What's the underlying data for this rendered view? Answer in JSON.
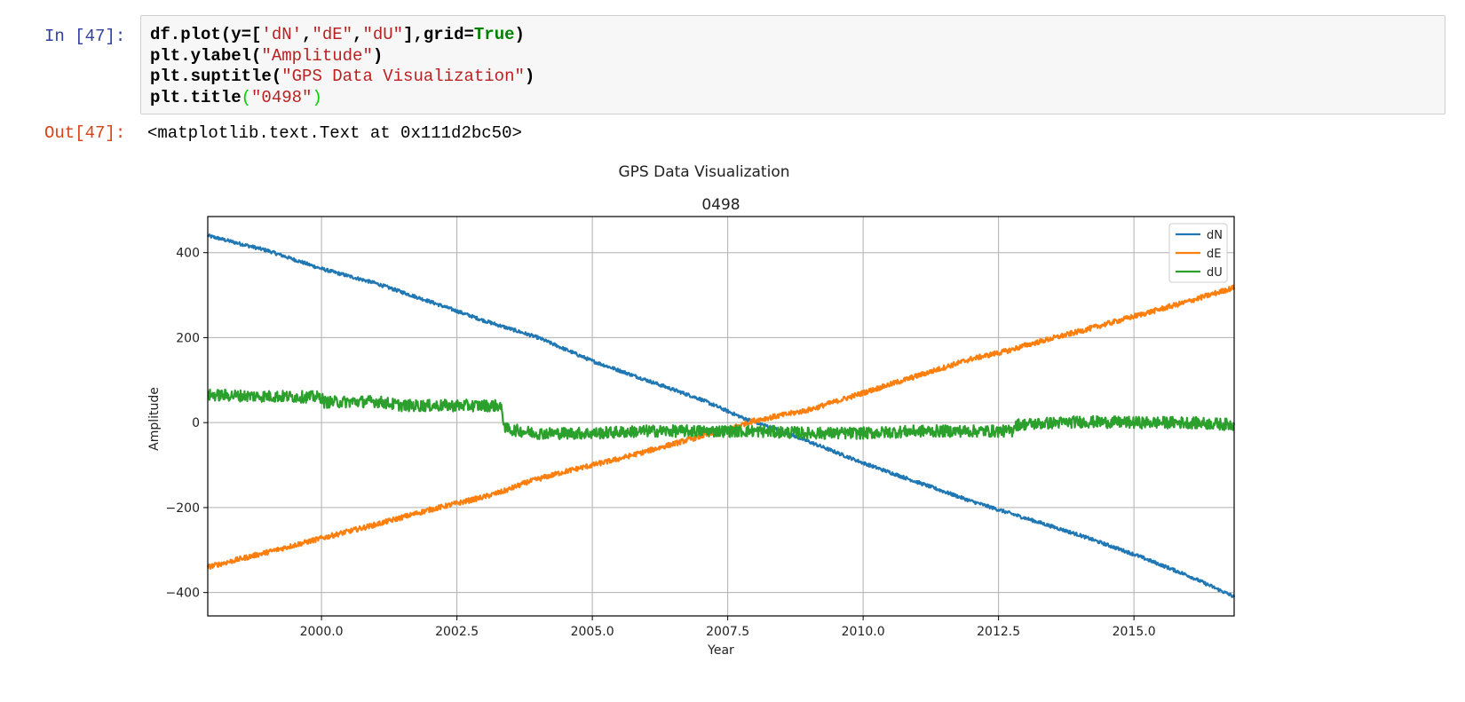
{
  "cell": {
    "in_prompt": "In [47]:",
    "out_prompt": "Out[47]:",
    "code_lines": [
      [
        {
          "t": "df.plot(y=[",
          "c": "n"
        },
        {
          "t": "'dN'",
          "c": "s"
        },
        {
          "t": ",",
          "c": "n"
        },
        {
          "t": "\"dE\"",
          "c": "s"
        },
        {
          "t": ",",
          "c": "n"
        },
        {
          "t": "\"dU\"",
          "c": "s"
        },
        {
          "t": "],grid=",
          "c": "n"
        },
        {
          "t": "True",
          "c": "k"
        },
        {
          "t": ")",
          "c": "n"
        }
      ],
      [
        {
          "t": "plt.ylabel(",
          "c": "n"
        },
        {
          "t": "\"Amplitude\"",
          "c": "s"
        },
        {
          "t": ")",
          "c": "n"
        }
      ],
      [
        {
          "t": "plt.suptitle(",
          "c": "n"
        },
        {
          "t": "\"GPS Data Visualization\"",
          "c": "s"
        },
        {
          "t": ")",
          "c": "n"
        }
      ],
      [
        {
          "t": "plt.title",
          "c": "n"
        },
        {
          "t": "(",
          "c": "p"
        },
        {
          "t": "\"0498\"",
          "c": "s"
        },
        {
          "t": ")",
          "c": "p"
        }
      ]
    ],
    "output_text": "<matplotlib.text.Text at 0x111d2bc50>"
  },
  "colors": {
    "dN": "#1f77b4",
    "dE": "#ff7f0e",
    "dU": "#2ca02c",
    "grid": "#b0b0b0"
  },
  "chart_data": {
    "type": "line",
    "suptitle": "GPS Data Visualization",
    "title": "0498",
    "xlabel": "Year",
    "ylabel": "Amplitude",
    "xlim": [
      1997.9,
      2016.85
    ],
    "ylim": [
      -455,
      485
    ],
    "grid": true,
    "legend_position": "top-right",
    "x_ticks": [
      2000.0,
      2002.5,
      2005.0,
      2007.5,
      2010.0,
      2012.5,
      2015.0
    ],
    "x_tick_labels": [
      "2000.0",
      "2002.5",
      "2005.0",
      "2007.5",
      "2010.0",
      "2012.5",
      "2015.0"
    ],
    "y_ticks": [
      400,
      200,
      0,
      -200,
      -400
    ],
    "y_tick_labels": [
      "400",
      "200",
      "0",
      "−200",
      "−400"
    ],
    "series": [
      {
        "name": "dN",
        "x": [
          1997.9,
          1999.0,
          2000.0,
          2001.0,
          2002.0,
          2003.0,
          2004.0,
          2005.0,
          2006.0,
          2007.0,
          2007.8,
          2008.5,
          2009.0,
          2010.0,
          2011.0,
          2012.0,
          2013.0,
          2014.0,
          2015.0,
          2016.0,
          2016.85
        ],
        "values": [
          440,
          405,
          362,
          328,
          285,
          240,
          200,
          145,
          100,
          55,
          10,
          -20,
          -45,
          -95,
          -140,
          -185,
          -225,
          -265,
          -310,
          -360,
          -410
        ],
        "noise": 4
      },
      {
        "name": "dE",
        "x": [
          1997.9,
          1999.0,
          2000.0,
          2001.0,
          2002.0,
          2003.0,
          2003.4,
          2003.8,
          2004.5,
          2005.5,
          2006.5,
          2007.5,
          2008.0,
          2009.0,
          2010.0,
          2011.0,
          2012.0,
          2012.7,
          2013.0,
          2014.0,
          2015.0,
          2016.0,
          2016.85
        ],
        "values": [
          -340,
          -305,
          -272,
          -240,
          -205,
          -175,
          -160,
          -140,
          -115,
          -85,
          -50,
          -15,
          5,
          30,
          70,
          110,
          150,
          170,
          182,
          215,
          250,
          285,
          318
        ],
        "noise": 6
      },
      {
        "name": "dU",
        "x": [
          1997.9,
          1999.0,
          2000.0,
          2000.05,
          2001.0,
          2001.5,
          2002.0,
          2003.3,
          2003.4,
          2004.0,
          2005.0,
          2006.0,
          2007.0,
          2008.0,
          2009.0,
          2010.0,
          2011.0,
          2012.0,
          2012.75,
          2012.8,
          2014.0,
          2015.0,
          2016.0,
          2016.85
        ],
        "values": [
          65,
          62,
          60,
          48,
          50,
          40,
          40,
          40,
          -15,
          -25,
          -25,
          -20,
          -20,
          -20,
          -25,
          -25,
          -20,
          -20,
          -20,
          -5,
          2,
          0,
          0,
          -5
        ],
        "noise": 14
      }
    ]
  }
}
